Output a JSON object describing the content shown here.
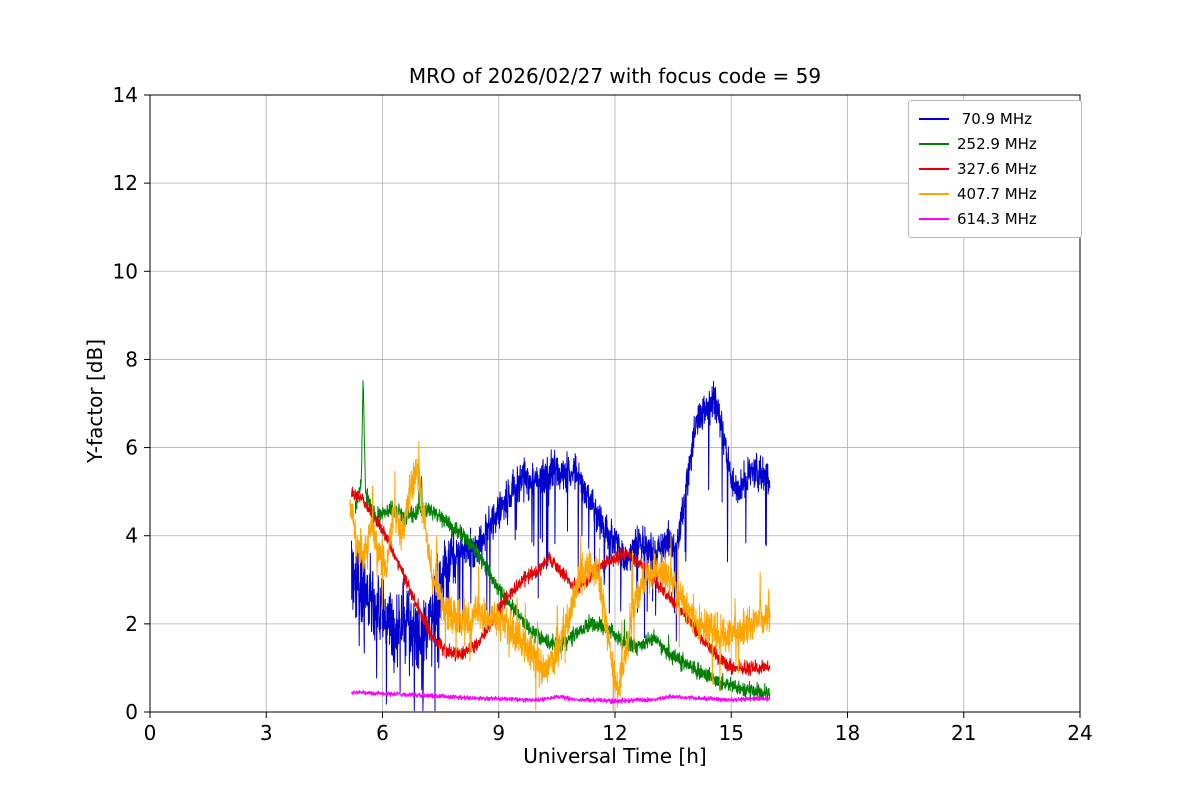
{
  "figure": {
    "title": "MRO of 2026/02/27 with focus code = 59"
  },
  "chart_data": {
    "type": "line",
    "title": "MRO of 2026/02/27 with focus code = 59",
    "xlabel": "Universal Time [h]",
    "ylabel": "Y-factor [dB]",
    "xlim": [
      0,
      24
    ],
    "ylim": [
      0,
      14
    ],
    "xticks": [
      0,
      3,
      6,
      9,
      12,
      15,
      18,
      21,
      24
    ],
    "yticks": [
      0,
      2,
      4,
      6,
      8,
      10,
      12,
      14
    ],
    "grid": true,
    "legend_position": "upper right",
    "series": [
      {
        "name": "70.9 MHz",
        "label": " 70.9 MHz",
        "color": "#0000cd",
        "noise": 0.4,
        "noise_boost": {
          "until": 7.9,
          "factor": 2.1
        },
        "spikes": {
          "prob": 0.035,
          "amp": 2.3,
          "dir": -1
        },
        "points": [
          [
            5.2,
            3.2
          ],
          [
            5.5,
            2.8
          ],
          [
            6.0,
            2.2
          ],
          [
            6.3,
            1.7
          ],
          [
            6.6,
            2.1
          ],
          [
            7.0,
            1.6
          ],
          [
            7.3,
            2.2
          ],
          [
            7.6,
            3.2
          ],
          [
            8.0,
            3.8
          ],
          [
            8.4,
            3.6
          ],
          [
            8.8,
            4.3
          ],
          [
            9.2,
            4.8
          ],
          [
            9.6,
            5.3
          ],
          [
            10.0,
            5.2
          ],
          [
            10.4,
            5.6
          ],
          [
            10.7,
            5.3
          ],
          [
            11.0,
            5.5
          ],
          [
            11.3,
            4.9
          ],
          [
            11.6,
            4.4
          ],
          [
            12.0,
            3.8
          ],
          [
            12.3,
            3.4
          ],
          [
            12.6,
            3.9
          ],
          [
            13.0,
            3.6
          ],
          [
            13.3,
            3.9
          ],
          [
            13.6,
            3.7
          ],
          [
            13.9,
            5.5
          ],
          [
            14.1,
            6.6
          ],
          [
            14.4,
            6.9
          ],
          [
            14.6,
            7.1
          ],
          [
            14.8,
            6.3
          ],
          [
            15.0,
            5.2
          ],
          [
            15.2,
            5.0
          ],
          [
            15.5,
            5.5
          ],
          [
            15.8,
            5.4
          ],
          [
            16.0,
            5.3
          ]
        ]
      },
      {
        "name": "252.9 MHz",
        "label": "252.9 MHz",
        "color": "#008000",
        "noise": 0.18,
        "spikes": {
          "prob": 0.004,
          "amp": 0.8,
          "dir": 1
        },
        "points": [
          [
            5.3,
            4.6
          ],
          [
            5.45,
            5.2
          ],
          [
            5.5,
            7.6
          ],
          [
            5.56,
            5.0
          ],
          [
            5.8,
            4.4
          ],
          [
            6.2,
            4.6
          ],
          [
            6.6,
            4.4
          ],
          [
            7.0,
            4.6
          ],
          [
            7.4,
            4.5
          ],
          [
            7.8,
            4.2
          ],
          [
            8.2,
            3.9
          ],
          [
            8.6,
            3.4
          ],
          [
            9.0,
            2.8
          ],
          [
            9.4,
            2.3
          ],
          [
            9.8,
            1.9
          ],
          [
            10.2,
            1.6
          ],
          [
            10.6,
            1.5
          ],
          [
            11.0,
            1.8
          ],
          [
            11.4,
            2.0
          ],
          [
            11.8,
            1.9
          ],
          [
            12.2,
            1.6
          ],
          [
            12.6,
            1.5
          ],
          [
            13.0,
            1.7
          ],
          [
            13.4,
            1.3
          ],
          [
            13.8,
            1.1
          ],
          [
            14.2,
            0.9
          ],
          [
            14.6,
            0.7
          ],
          [
            15.0,
            0.6
          ],
          [
            15.4,
            0.5
          ],
          [
            15.8,
            0.45
          ],
          [
            16.0,
            0.4
          ]
        ]
      },
      {
        "name": "327.6 MHz",
        "label": "327.6 MHz",
        "color": "#e60000",
        "noise": 0.15,
        "points": [
          [
            5.2,
            5.0
          ],
          [
            5.5,
            4.8
          ],
          [
            5.8,
            4.4
          ],
          [
            6.1,
            4.0
          ],
          [
            6.4,
            3.4
          ],
          [
            6.7,
            2.8
          ],
          [
            7.0,
            2.2
          ],
          [
            7.3,
            1.7
          ],
          [
            7.6,
            1.4
          ],
          [
            8.0,
            1.3
          ],
          [
            8.4,
            1.5
          ],
          [
            8.8,
            2.0
          ],
          [
            9.2,
            2.6
          ],
          [
            9.6,
            3.0
          ],
          [
            10.0,
            3.2
          ],
          [
            10.3,
            3.5
          ],
          [
            10.6,
            3.2
          ],
          [
            11.0,
            2.8
          ],
          [
            11.3,
            3.0
          ],
          [
            11.6,
            3.3
          ],
          [
            12.0,
            3.5
          ],
          [
            12.3,
            3.6
          ],
          [
            12.6,
            3.4
          ],
          [
            13.0,
            3.0
          ],
          [
            13.4,
            2.6
          ],
          [
            13.8,
            2.2
          ],
          [
            14.2,
            1.7
          ],
          [
            14.6,
            1.3
          ],
          [
            15.0,
            1.0
          ],
          [
            15.4,
            1.0
          ],
          [
            15.8,
            1.0
          ],
          [
            16.0,
            1.0
          ]
        ]
      },
      {
        "name": "407.7 MHz",
        "label": "407.7 MHz",
        "color": "#ffa500",
        "noise": 0.4,
        "spikes": {
          "prob": 0.02,
          "amp": 1.2,
          "dir": 0
        },
        "points": [
          [
            5.15,
            4.9
          ],
          [
            5.3,
            3.9
          ],
          [
            5.5,
            3.5
          ],
          [
            5.7,
            4.2
          ],
          [
            5.9,
            3.6
          ],
          [
            6.1,
            3.3
          ],
          [
            6.3,
            4.6
          ],
          [
            6.5,
            4.0
          ],
          [
            6.7,
            5.0
          ],
          [
            6.9,
            5.6
          ],
          [
            7.1,
            4.2
          ],
          [
            7.3,
            3.0
          ],
          [
            7.5,
            2.6
          ],
          [
            7.8,
            2.2
          ],
          [
            8.1,
            2.0
          ],
          [
            8.4,
            2.3
          ],
          [
            8.7,
            2.1
          ],
          [
            9.0,
            2.2
          ],
          [
            9.3,
            1.9
          ],
          [
            9.6,
            1.6
          ],
          [
            9.9,
            1.3
          ],
          [
            10.2,
            0.9
          ],
          [
            10.5,
            1.3
          ],
          [
            10.8,
            2.2
          ],
          [
            11.1,
            3.0
          ],
          [
            11.4,
            3.4
          ],
          [
            11.6,
            3.0
          ],
          [
            11.8,
            1.8
          ],
          [
            12.0,
            0.7
          ],
          [
            12.1,
            0.5
          ],
          [
            12.3,
            1.5
          ],
          [
            12.5,
            2.5
          ],
          [
            12.8,
            3.1
          ],
          [
            13.1,
            3.3
          ],
          [
            13.4,
            3.0
          ],
          [
            13.7,
            2.6
          ],
          [
            14.0,
            2.2
          ],
          [
            14.3,
            1.9
          ],
          [
            14.6,
            1.8
          ],
          [
            14.9,
            1.7
          ],
          [
            15.2,
            1.9
          ],
          [
            15.5,
            2.0
          ],
          [
            15.8,
            2.2
          ],
          [
            16.0,
            2.1
          ]
        ]
      },
      {
        "name": "614.3 MHz",
        "label": "614.3 MHz",
        "color": "#ff00ff",
        "noise": 0.05,
        "points": [
          [
            5.2,
            0.45
          ],
          [
            6.0,
            0.42
          ],
          [
            7.0,
            0.38
          ],
          [
            8.0,
            0.33
          ],
          [
            9.0,
            0.3
          ],
          [
            10.0,
            0.27
          ],
          [
            10.5,
            0.35
          ],
          [
            11.0,
            0.28
          ],
          [
            12.0,
            0.25
          ],
          [
            13.0,
            0.28
          ],
          [
            13.5,
            0.35
          ],
          [
            14.0,
            0.32
          ],
          [
            14.5,
            0.3
          ],
          [
            15.0,
            0.28
          ],
          [
            15.5,
            0.3
          ],
          [
            16.0,
            0.3
          ]
        ]
      }
    ]
  }
}
